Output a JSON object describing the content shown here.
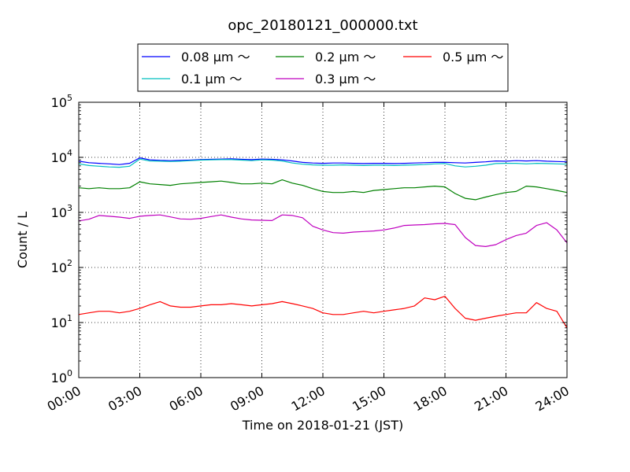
{
  "chart_data": {
    "type": "line",
    "title": "opc_20180121_000000.txt",
    "xlabel": "Time on 2018-01-21 (JST)",
    "ylabel": "Count / L",
    "x_unit": "hours",
    "xlim": [
      0,
      24
    ],
    "ylim": [
      1,
      100000
    ],
    "yscale": "log",
    "grid": true,
    "legend_placement": "top-center",
    "x_ticks": [
      "00:00",
      "03:00",
      "06:00",
      "09:00",
      "12:00",
      "15:00",
      "18:00",
      "21:00",
      "24:00"
    ],
    "y_ticks": [
      {
        "base": "10",
        "exp": "0"
      },
      {
        "base": "10",
        "exp": "1"
      },
      {
        "base": "10",
        "exp": "2"
      },
      {
        "base": "10",
        "exp": "3"
      },
      {
        "base": "10",
        "exp": "4"
      },
      {
        "base": "10",
        "exp": "5"
      }
    ],
    "x": [
      0,
      0.5,
      1,
      1.5,
      2,
      2.5,
      3,
      3.5,
      4,
      4.5,
      5,
      5.5,
      6,
      6.5,
      7,
      7.5,
      8,
      8.5,
      9,
      9.5,
      10,
      10.5,
      11,
      11.5,
      12,
      12.5,
      13,
      13.5,
      14,
      14.5,
      15,
      15.5,
      16,
      16.5,
      17,
      17.5,
      18,
      18.5,
      19,
      19.5,
      20,
      20.5,
      21,
      21.5,
      22,
      22.5,
      23,
      23.5,
      24
    ],
    "series": [
      {
        "name": "0.08 μm ～",
        "color": "#0000ff",
        "values": [
          8500,
          8000,
          7800,
          7600,
          7400,
          7800,
          9800,
          9000,
          8800,
          8700,
          8800,
          8900,
          9100,
          9200,
          9300,
          9400,
          9200,
          9100,
          9300,
          9200,
          9000,
          8600,
          8100,
          7900,
          7800,
          7900,
          7900,
          7800,
          7700,
          7800,
          7800,
          7700,
          7800,
          7900,
          8000,
          8100,
          8100,
          8000,
          7900,
          8100,
          8300,
          8600,
          8500,
          8700,
          8600,
          8700,
          8500,
          8400,
          8300
        ]
      },
      {
        "name": "0.1 μm ～",
        "color": "#00bfbf",
        "values": [
          7600,
          7100,
          6900,
          6700,
          6600,
          6900,
          9300,
          8600,
          8500,
          8400,
          8500,
          8700,
          8900,
          9000,
          9100,
          9100,
          8900,
          8700,
          9000,
          8900,
          8600,
          7900,
          7500,
          7300,
          7200,
          7200,
          7300,
          7200,
          7100,
          7200,
          7200,
          7100,
          7200,
          7300,
          7400,
          7600,
          7700,
          7000,
          6700,
          6900,
          7200,
          7700,
          7800,
          7800,
          7600,
          7800,
          7700,
          7600,
          7500
        ]
      },
      {
        "name": "0.2 μm ～",
        "color": "#008000",
        "values": [
          2800,
          2700,
          2800,
          2700,
          2700,
          2800,
          3600,
          3300,
          3200,
          3100,
          3300,
          3400,
          3500,
          3600,
          3700,
          3500,
          3300,
          3300,
          3400,
          3300,
          3900,
          3400,
          3100,
          2700,
          2400,
          2300,
          2300,
          2400,
          2300,
          2500,
          2600,
          2700,
          2800,
          2800,
          2900,
          3000,
          2900,
          2200,
          1800,
          1700,
          1900,
          2100,
          2300,
          2400,
          3000,
          2900,
          2700,
          2500,
          2300
        ]
      },
      {
        "name": "0.3 μm ～",
        "color": "#bf00bf",
        "values": [
          700,
          750,
          880,
          850,
          820,
          780,
          850,
          880,
          900,
          830,
          760,
          750,
          780,
          840,
          900,
          820,
          760,
          730,
          720,
          710,
          900,
          880,
          800,
          560,
          480,
          430,
          420,
          440,
          450,
          460,
          480,
          520,
          580,
          590,
          600,
          620,
          630,
          600,
          350,
          250,
          240,
          260,
          320,
          380,
          420,
          580,
          650,
          480,
          280
        ]
      },
      {
        "name": "0.5 μm ～",
        "color": "#ff0000",
        "values": [
          14,
          15,
          16,
          16,
          15,
          16,
          18,
          21,
          24,
          20,
          19,
          19,
          20,
          21,
          21,
          22,
          21,
          20,
          21,
          22,
          24,
          22,
          20,
          18,
          15,
          14,
          14,
          15,
          16,
          15,
          16,
          17,
          18,
          20,
          28,
          26,
          30,
          18,
          12,
          11,
          12,
          13,
          14,
          15,
          15,
          23,
          18,
          16,
          8
        ]
      }
    ]
  }
}
